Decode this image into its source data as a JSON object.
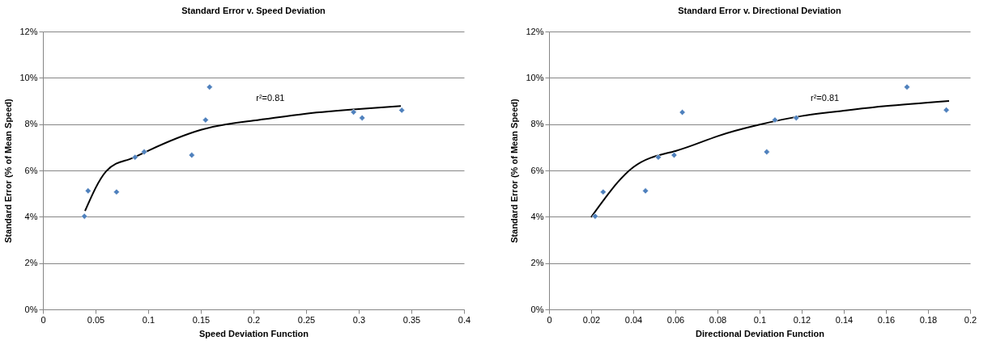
{
  "chart_data": [
    {
      "type": "scatter",
      "title": "Standard Error v. Speed Deviation",
      "xlabel": "Speed Deviation Function",
      "ylabel": "Standard Error (% of Mean Speed)",
      "xlim": [
        0,
        0.4
      ],
      "xticks": [
        0,
        0.05,
        0.1,
        0.15,
        0.2,
        0.25,
        0.3,
        0.35,
        0.4
      ],
      "ylim": [
        0,
        12
      ],
      "yticks": [
        {
          "value": 0,
          "label": "0%"
        },
        {
          "value": 2,
          "label": "2%"
        },
        {
          "value": 4,
          "label": "4%"
        },
        {
          "value": 6,
          "label": "6%"
        },
        {
          "value": 8,
          "label": "8%"
        },
        {
          "value": 10,
          "label": "10%"
        },
        {
          "value": 12,
          "label": "12%"
        }
      ],
      "grid": "y",
      "series": [
        {
          "marker": "diamond",
          "color": "#4f81bd",
          "x": [
            0.0394,
            0.0429,
            0.0699,
            0.0875,
            0.0962,
            0.1414,
            0.1545,
            0.1583,
            0.2951,
            0.3032,
            0.3409
          ],
          "values": [
            4.02,
            5.12,
            5.07,
            6.57,
            6.8,
            6.66,
            8.18,
            9.6,
            8.52,
            8.27,
            8.6
          ]
        },
        {
          "type": "line",
          "marker": "none",
          "color": "#000000",
          "x": [
            0.04,
            0.06,
            0.08,
            0.1,
            0.15,
            0.2,
            0.25,
            0.3,
            0.34
          ],
          "values": [
            4.25,
            5.96,
            6.45,
            6.85,
            7.75,
            8.15,
            8.45,
            8.65,
            8.78
          ]
        }
      ],
      "annotations": [
        "r²=0.81"
      ]
    },
    {
      "type": "scatter",
      "title": "Standard Error v. Directional Deviation",
      "xlabel": "Directional Deviation Function",
      "ylabel": "Standard Error (% of Mean Speed)",
      "xlim": [
        0,
        0.2
      ],
      "xticks": [
        0,
        0.02,
        0.04,
        0.06,
        0.08,
        0.1,
        0.12,
        0.14,
        0.16,
        0.18,
        0.2
      ],
      "ylim": [
        0,
        12
      ],
      "yticks": [
        {
          "value": 0,
          "label": "0%"
        },
        {
          "value": 2,
          "label": "2%"
        },
        {
          "value": 4,
          "label": "4%"
        },
        {
          "value": 6,
          "label": "6%"
        },
        {
          "value": 8,
          "label": "8%"
        },
        {
          "value": 10,
          "label": "10%"
        },
        {
          "value": 12,
          "label": "12%"
        }
      ],
      "grid": "y",
      "series": [
        {
          "marker": "diamond",
          "color": "#4f81bd",
          "x": [
            0.0219,
            0.0257,
            0.0458,
            0.0519,
            0.0594,
            0.0633,
            0.1034,
            0.1073,
            0.1174,
            0.17,
            0.1887
          ],
          "values": [
            4.02,
            5.07,
            5.12,
            6.57,
            6.66,
            8.51,
            6.8,
            8.18,
            8.27,
            9.6,
            8.61
          ]
        },
        {
          "type": "line",
          "marker": "none",
          "color": "#000000",
          "x": [
            0.02,
            0.04,
            0.06,
            0.08,
            0.1,
            0.12,
            0.14,
            0.16,
            0.19
          ],
          "values": [
            3.98,
            6.14,
            6.84,
            7.48,
            7.98,
            8.35,
            8.58,
            8.78,
            9.0
          ]
        }
      ],
      "annotations": [
        "r²=0.81"
      ]
    }
  ]
}
